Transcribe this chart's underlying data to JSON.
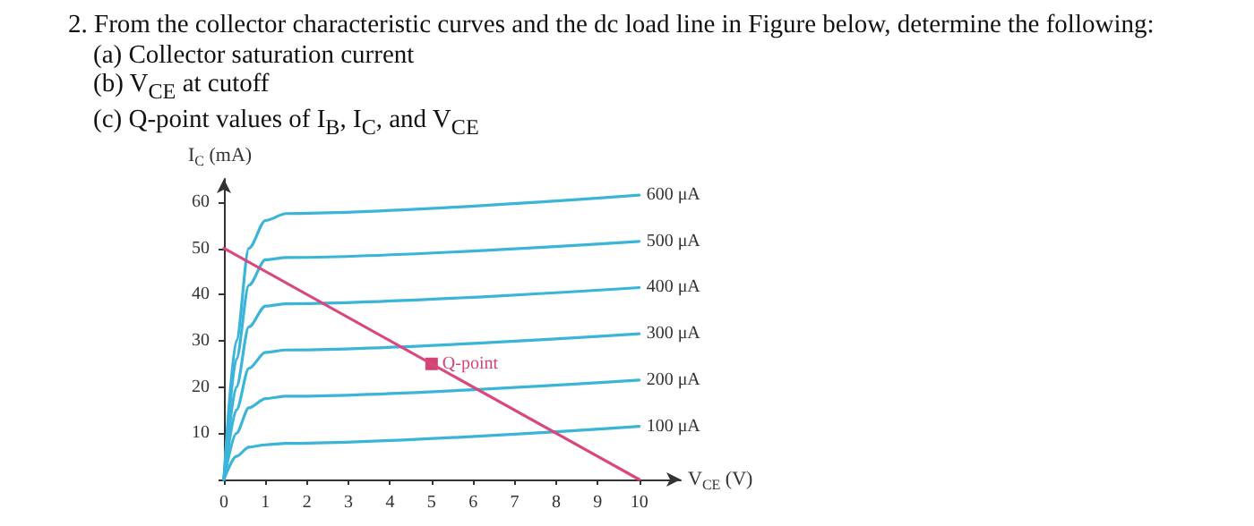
{
  "chart_data": {
    "type": "line",
    "title": "2. From the collector characteristic curves and the dc load line in Figure below, determine the following:",
    "annotations": [
      "(a) Collector saturation current",
      "(b) V$_{CE}$ at cutoff",
      "(c) Q-point values of I$_{B}$, I$_{C}$, and V$_{CE}$",
      {
        "text": "Q-point",
        "x": 5,
        "y": 25
      }
    ],
    "xlabel": "V$_{CE}$ (V)",
    "ylabel": "I$_{C}$ (mA)",
    "x": [
      0,
      0.3,
      0.6,
      1,
      1.5,
      10
    ],
    "series": [
      {
        "name": "600 μA",
        "color": "#3bb4da",
        "values": [
          0,
          30,
          50,
          56,
          57.5,
          61.5
        ]
      },
      {
        "name": "500 μA",
        "color": "#3bb4da",
        "values": [
          0,
          26,
          42,
          47.5,
          48,
          51.5
        ]
      },
      {
        "name": "400 μA",
        "color": "#3bb4da",
        "values": [
          0,
          20,
          33,
          37.5,
          38,
          41.5
        ]
      },
      {
        "name": "300 μA",
        "color": "#3bb4da",
        "values": [
          0,
          15,
          24,
          27.5,
          28,
          31.5
        ]
      },
      {
        "name": "200 μA",
        "color": "#3bb4da",
        "values": [
          0,
          10,
          15.5,
          17.5,
          18,
          21.5
        ]
      },
      {
        "name": "100 μA",
        "color": "#3bb4da",
        "values": [
          0,
          5,
          7,
          7.5,
          7.8,
          11.5
        ]
      },
      {
        "type": "line",
        "color": "#d9477e",
        "x": [
          0,
          10
        ],
        "values": [
          50,
          0
        ]
      },
      {
        "type": "scatter",
        "color": "#c8174e",
        "marker": "square",
        "x": [
          5
        ],
        "values": [
          25
        ]
      }
    ],
    "xlim": [
      0,
      11
    ],
    "ylim": [
      0,
      65
    ],
    "xticks": [
      0,
      1,
      2,
      3,
      4,
      5,
      6,
      7,
      8,
      9,
      10
    ],
    "yticks": [
      {
        "value": 0,
        "label": null
      },
      10,
      20,
      30,
      40,
      50,
      60
    ],
    "grid": false,
    "legend": false,
    "marker": "none"
  }
}
